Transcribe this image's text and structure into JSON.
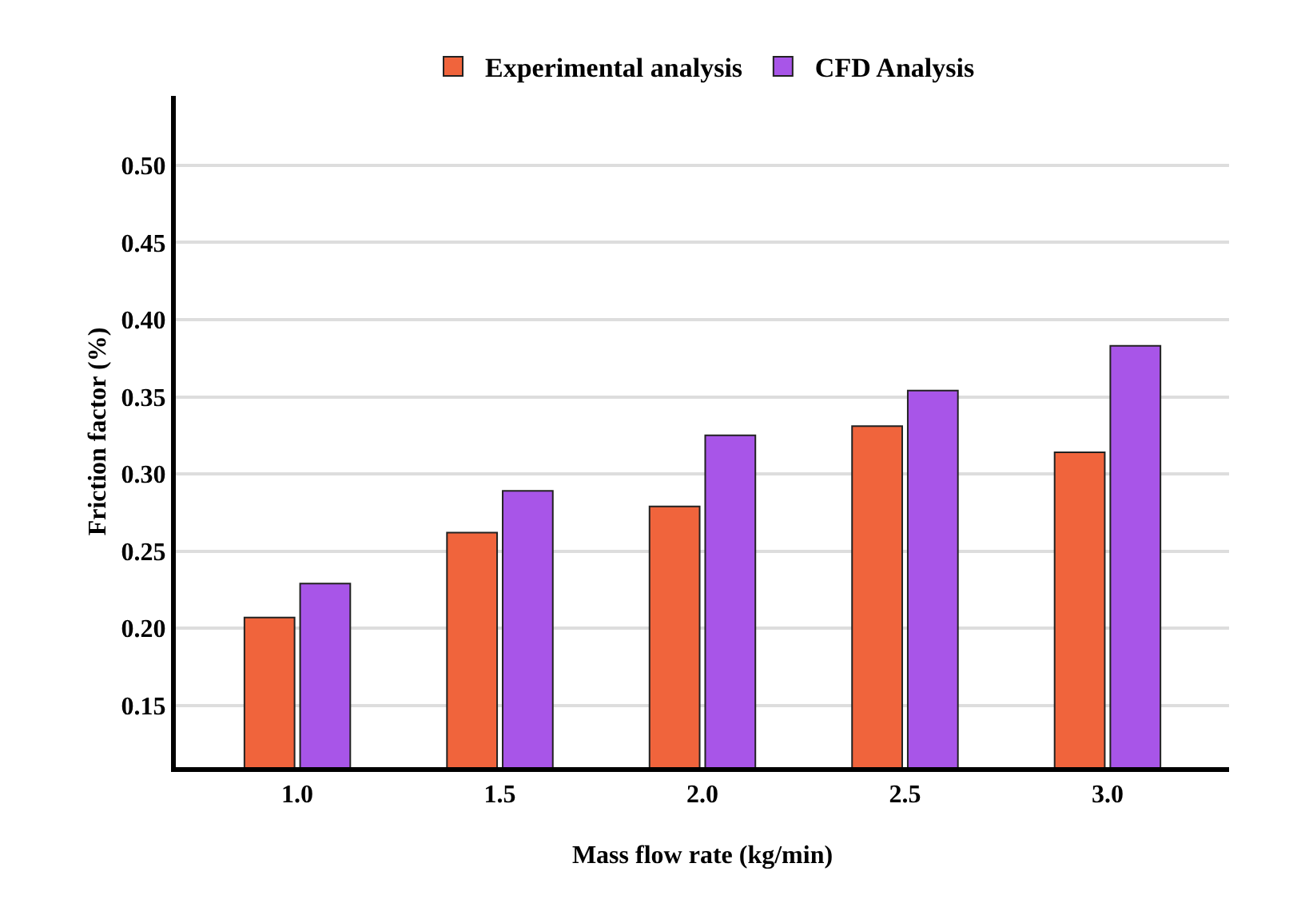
{
  "chart_data": {
    "type": "bar",
    "xlabel": "Mass flow rate (kg/min)",
    "ylabel": "Friction factor (%)",
    "categories": [
      "1.0",
      "1.5",
      "2.0",
      "2.5",
      "3.0"
    ],
    "series": [
      {
        "name": "Experimental analysis",
        "color": "#f0643c",
        "values": [
          0.207,
          0.262,
          0.279,
          0.331,
          0.314
        ]
      },
      {
        "name": "CFD Analysis",
        "color": "#a855e8",
        "values": [
          0.229,
          0.289,
          0.325,
          0.354,
          0.383
        ]
      }
    ],
    "ylim": [
      0.11,
      0.545
    ],
    "yticks": [
      0.15,
      {
        "value": 0.2,
        "label": "0.20"
      },
      0.25,
      {
        "value": 0.3,
        "label": "0.30"
      },
      0.35,
      {
        "value": 0.4,
        "label": "0.40"
      },
      0.45,
      {
        "value": 0.5,
        "label": "0.50"
      }
    ],
    "grid": "y",
    "legend": "top"
  }
}
